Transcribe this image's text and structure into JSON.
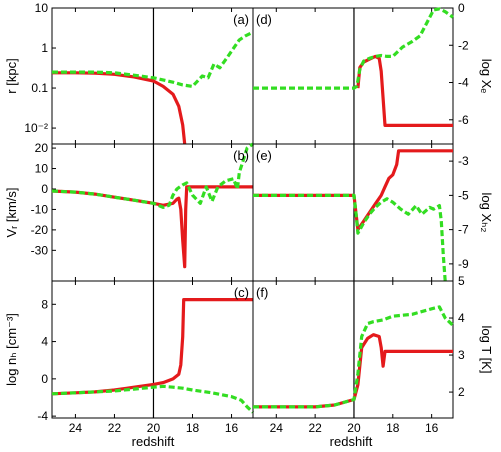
{
  "figure": {
    "x_axis_label": "redshift",
    "x_ticks": [
      "24",
      "22",
      "20",
      "18",
      "16"
    ],
    "colors": {
      "red": "#e41a1c",
      "green": "#33dd22"
    }
  },
  "chart_data": [
    {
      "id": "a",
      "panel_label": "(a)",
      "type": "line",
      "side": "left",
      "row": 0,
      "ylabel": "r [kpc]",
      "yscale": "log",
      "ylim": [
        0.004,
        10
      ],
      "yticks": [
        {
          "v": 10,
          "label": "10"
        },
        {
          "v": 1,
          "label": "1"
        },
        {
          "v": 0.1,
          "label": "0.1"
        },
        {
          "v": 0.01,
          "label": "10⁻²"
        }
      ],
      "xlim": [
        25.2,
        14.9
      ],
      "vline": 20,
      "series": [
        {
          "color": "red",
          "style": "solid",
          "points": [
            [
              25.2,
              0.24
            ],
            [
              24,
              0.24
            ],
            [
              23,
              0.235
            ],
            [
              22,
              0.22
            ],
            [
              21,
              0.19
            ],
            [
              20,
              0.15
            ],
            [
              19.5,
              0.11
            ],
            [
              19,
              0.07
            ],
            [
              18.7,
              0.035
            ],
            [
              18.5,
              0.012
            ],
            [
              18.4,
              0.004
            ]
          ]
        },
        {
          "color": "green",
          "style": "dashed",
          "points": [
            [
              25.2,
              0.25
            ],
            [
              24,
              0.25
            ],
            [
              23,
              0.25
            ],
            [
              22,
              0.24
            ],
            [
              21,
              0.21
            ],
            [
              20,
              0.18
            ],
            [
              19,
              0.14
            ],
            [
              18.5,
              0.12
            ],
            [
              18,
              0.11
            ],
            [
              17.5,
              0.2
            ],
            [
              17.2,
              0.18
            ],
            [
              16.9,
              0.4
            ],
            [
              16.6,
              0.32
            ],
            [
              16.2,
              0.6
            ],
            [
              15.6,
              1.6
            ],
            [
              15.3,
              2.0
            ],
            [
              14.9,
              2.5
            ]
          ]
        }
      ]
    },
    {
      "id": "b",
      "panel_label": "(b)",
      "type": "line",
      "side": "left",
      "row": 1,
      "ylabel": "Vᵣ [km/s]",
      "yscale": "linear",
      "ylim": [
        -45,
        22
      ],
      "yticks": [
        {
          "v": 20,
          "label": "20"
        },
        {
          "v": 10,
          "label": "10"
        },
        {
          "v": 0,
          "label": "0"
        },
        {
          "v": -10,
          "label": "-10"
        },
        {
          "v": -20,
          "label": "-20"
        },
        {
          "v": -30,
          "label": "-30"
        }
      ],
      "xlim": [
        25.2,
        14.9
      ],
      "vline": 20,
      "series": [
        {
          "color": "red",
          "style": "solid",
          "points": [
            [
              25.2,
              -1
            ],
            [
              24,
              -1.5
            ],
            [
              23,
              -2.5
            ],
            [
              22,
              -4
            ],
            [
              21,
              -5.5
            ],
            [
              20,
              -7
            ],
            [
              19.5,
              -8
            ],
            [
              19,
              -7
            ],
            [
              18.8,
              -5
            ],
            [
              18.7,
              -4.5
            ],
            [
              18.6,
              -10
            ],
            [
              18.5,
              -25
            ],
            [
              18.4,
              -38
            ],
            [
              18.35,
              -10
            ],
            [
              18.3,
              1
            ],
            [
              18,
              1
            ],
            [
              17,
              1
            ],
            [
              16,
              1
            ],
            [
              14.9,
              1
            ]
          ]
        },
        {
          "color": "green",
          "style": "dashed",
          "points": [
            [
              25.2,
              -1
            ],
            [
              24,
              -1.5
            ],
            [
              23,
              -2.5
            ],
            [
              22,
              -4
            ],
            [
              21,
              -5.5
            ],
            [
              20,
              -7
            ],
            [
              19.5,
              -9
            ],
            [
              19.2,
              -8
            ],
            [
              19,
              -3
            ],
            [
              18.8,
              0
            ],
            [
              18.5,
              2
            ],
            [
              18.3,
              3
            ],
            [
              18,
              -3
            ],
            [
              17.6,
              -7
            ],
            [
              17.3,
              1
            ],
            [
              17,
              -6
            ],
            [
              16.7,
              1
            ],
            [
              16.3,
              4
            ],
            [
              15.9,
              5
            ],
            [
              15.7,
              0
            ],
            [
              15.6,
              8
            ],
            [
              15.4,
              14
            ],
            [
              15.2,
              20
            ],
            [
              14.9,
              22
            ]
          ]
        }
      ]
    },
    {
      "id": "c",
      "panel_label": "(c)",
      "type": "line",
      "side": "left",
      "row": 2,
      "ylabel": "log nₕ [cm⁻³]",
      "yscale": "linear",
      "ylim": [
        -4.2,
        10.5
      ],
      "yticks": [
        {
          "v": 8,
          "label": "8"
        },
        {
          "v": 4,
          "label": "4"
        },
        {
          "v": 0,
          "label": "0"
        },
        {
          "v": -4,
          "label": "-4"
        }
      ],
      "xlim": [
        25.2,
        14.9
      ],
      "vline": 20,
      "series": [
        {
          "color": "red",
          "style": "solid",
          "points": [
            [
              25.2,
              -1.6
            ],
            [
              24,
              -1.5
            ],
            [
              23,
              -1.4
            ],
            [
              22,
              -1.2
            ],
            [
              21,
              -0.9
            ],
            [
              20,
              -0.6
            ],
            [
              19.5,
              -0.4
            ],
            [
              19,
              0
            ],
            [
              18.7,
              0.5
            ],
            [
              18.6,
              1.5
            ],
            [
              18.5,
              4.5
            ],
            [
              18.45,
              8.5
            ],
            [
              18,
              8.5
            ],
            [
              17,
              8.5
            ],
            [
              16,
              8.5
            ],
            [
              14.9,
              8.5
            ]
          ]
        },
        {
          "color": "green",
          "style": "dashed",
          "points": [
            [
              25.2,
              -1.6
            ],
            [
              24,
              -1.5
            ],
            [
              23,
              -1.4
            ],
            [
              22,
              -1.3
            ],
            [
              21,
              -1.1
            ],
            [
              20,
              -0.9
            ],
            [
              19.5,
              -0.8
            ],
            [
              19,
              -0.9
            ],
            [
              18.5,
              -1.0
            ],
            [
              18,
              -1.2
            ],
            [
              17,
              -1.5
            ],
            [
              16,
              -1.9
            ],
            [
              15.5,
              -2.3
            ],
            [
              15.2,
              -3.0
            ],
            [
              14.9,
              -3.6
            ]
          ]
        }
      ]
    },
    {
      "id": "d",
      "panel_label": "(d)",
      "type": "line",
      "side": "right",
      "row": 0,
      "ylabel": "log Xₑ",
      "yscale": "linear",
      "ylim": [
        -7.3,
        0
      ],
      "yticks": [
        {
          "v": 0,
          "label": "0"
        },
        {
          "v": -2,
          "label": "-2"
        },
        {
          "v": -4,
          "label": "-4"
        },
        {
          "v": -6,
          "label": "-6"
        }
      ],
      "xlim": [
        25.2,
        14.9
      ],
      "vline": 20,
      "series": [
        {
          "color": "red",
          "style": "solid",
          "points": [
            [
              19.8,
              -4.3
            ],
            [
              19.7,
              -3.2
            ],
            [
              19.5,
              -2.9
            ],
            [
              19.2,
              -2.75
            ],
            [
              18.9,
              -2.6
            ],
            [
              18.7,
              -2.7
            ],
            [
              18.6,
              -3.4
            ],
            [
              18.4,
              -6.3
            ],
            [
              18,
              -6.3
            ],
            [
              17,
              -6.3
            ],
            [
              16,
              -6.3
            ],
            [
              14.9,
              -6.3
            ]
          ]
        },
        {
          "color": "green",
          "style": "dashed",
          "points": [
            [
              25.2,
              -4.3
            ],
            [
              24,
              -4.3
            ],
            [
              23,
              -4.3
            ],
            [
              22,
              -4.3
            ],
            [
              21,
              -4.3
            ],
            [
              20,
              -4.3
            ],
            [
              19.85,
              -4.2
            ],
            [
              19.7,
              -3.3
            ],
            [
              19.5,
              -2.85
            ],
            [
              19.2,
              -2.7
            ],
            [
              18.9,
              -2.6
            ],
            [
              18.6,
              -2.55
            ],
            [
              18.3,
              -2.6
            ],
            [
              18,
              -2.6
            ],
            [
              17.5,
              -2.1
            ],
            [
              17,
              -1.8
            ],
            [
              16.6,
              -1.5
            ],
            [
              16.2,
              -0.7
            ],
            [
              15.9,
              -0.1
            ],
            [
              15.6,
              -0.05
            ],
            [
              15.3,
              -0.2
            ],
            [
              14.9,
              -0.5
            ]
          ]
        }
      ]
    },
    {
      "id": "e",
      "panel_label": "(e)",
      "type": "line",
      "side": "right",
      "row": 1,
      "ylabel": "log Xₕ₂",
      "yscale": "linear",
      "ylim": [
        -10,
        -2
      ],
      "yticks": [
        {
          "v": -3,
          "label": "-3"
        },
        {
          "v": -5,
          "label": "-5"
        },
        {
          "v": -7,
          "label": "-7"
        },
        {
          "v": -9,
          "label": "-9"
        }
      ],
      "xlim": [
        25.2,
        14.9
      ],
      "vline": 20,
      "series": [
        {
          "color": "red",
          "style": "solid",
          "points": [
            [
              25.2,
              -5
            ],
            [
              24,
              -5
            ],
            [
              23,
              -5
            ],
            [
              22,
              -5
            ],
            [
              21,
              -5
            ],
            [
              20,
              -5
            ],
            [
              19.9,
              -6.0
            ],
            [
              19.8,
              -7.0
            ],
            [
              19.5,
              -6.5
            ],
            [
              19.2,
              -6.0
            ],
            [
              18.9,
              -5.5
            ],
            [
              18.6,
              -5.0
            ],
            [
              18.4,
              -4.5
            ],
            [
              18.2,
              -4.0
            ],
            [
              18,
              -3.8
            ],
            [
              17.8,
              -3.2
            ],
            [
              17.7,
              -2.4
            ],
            [
              17,
              -2.4
            ],
            [
              16,
              -2.4
            ],
            [
              14.9,
              -2.4
            ]
          ]
        },
        {
          "color": "green",
          "style": "dashed",
          "points": [
            [
              25.2,
              -5
            ],
            [
              24,
              -5
            ],
            [
              23,
              -5
            ],
            [
              22,
              -5
            ],
            [
              21,
              -5
            ],
            [
              20,
              -5
            ],
            [
              19.9,
              -6.0
            ],
            [
              19.8,
              -7.2
            ],
            [
              19.5,
              -6.6
            ],
            [
              19.2,
              -6.1
            ],
            [
              18.9,
              -5.7
            ],
            [
              18.6,
              -5.4
            ],
            [
              18.3,
              -5.2
            ],
            [
              18,
              -5.4
            ],
            [
              17.6,
              -5.8
            ],
            [
              17.2,
              -6.1
            ],
            [
              16.8,
              -5.6
            ],
            [
              16.5,
              -6.1
            ],
            [
              16.1,
              -5.7
            ],
            [
              15.9,
              -5.8
            ],
            [
              15.6,
              -5.6
            ],
            [
              15.5,
              -6.5
            ],
            [
              15.4,
              -8.5
            ],
            [
              15.3,
              -10
            ]
          ]
        }
      ]
    },
    {
      "id": "f",
      "panel_label": "(f)",
      "type": "line",
      "side": "right",
      "row": 2,
      "ylabel": "log T [K]",
      "yscale": "linear",
      "ylim": [
        1.3,
        5
      ],
      "yticks": [
        {
          "v": 5,
          "label": "5"
        },
        {
          "v": 4,
          "label": "4"
        },
        {
          "v": 3,
          "label": "3"
        },
        {
          "v": 2,
          "label": "2"
        }
      ],
      "xlim": [
        25.2,
        14.9
      ],
      "vline": 20,
      "series": [
        {
          "color": "red",
          "style": "solid",
          "points": [
            [
              25.2,
              1.6
            ],
            [
              24,
              1.6
            ],
            [
              23,
              1.6
            ],
            [
              22,
              1.6
            ],
            [
              21,
              1.65
            ],
            [
              20,
              1.8
            ],
            [
              19.8,
              2.2
            ],
            [
              19.6,
              3.2
            ],
            [
              19.3,
              3.45
            ],
            [
              19,
              3.55
            ],
            [
              18.7,
              3.5
            ],
            [
              18.6,
              3.2
            ],
            [
              18.5,
              2.7
            ],
            [
              18.4,
              3.1
            ],
            [
              18,
              3.1
            ],
            [
              17,
              3.1
            ],
            [
              16,
              3.1
            ],
            [
              14.9,
              3.1
            ]
          ]
        },
        {
          "color": "green",
          "style": "dashed",
          "points": [
            [
              25.2,
              1.6
            ],
            [
              24,
              1.6
            ],
            [
              23,
              1.6
            ],
            [
              22,
              1.6
            ],
            [
              21,
              1.65
            ],
            [
              20,
              1.8
            ],
            [
              19.8,
              2.5
            ],
            [
              19.6,
              3.5
            ],
            [
              19.3,
              3.85
            ],
            [
              19,
              3.9
            ],
            [
              18.5,
              3.95
            ],
            [
              18,
              4.05
            ],
            [
              17,
              4.1
            ],
            [
              16,
              4.25
            ],
            [
              15.6,
              4.3
            ],
            [
              15.3,
              4.0
            ],
            [
              14.9,
              3.8
            ]
          ]
        }
      ]
    }
  ]
}
